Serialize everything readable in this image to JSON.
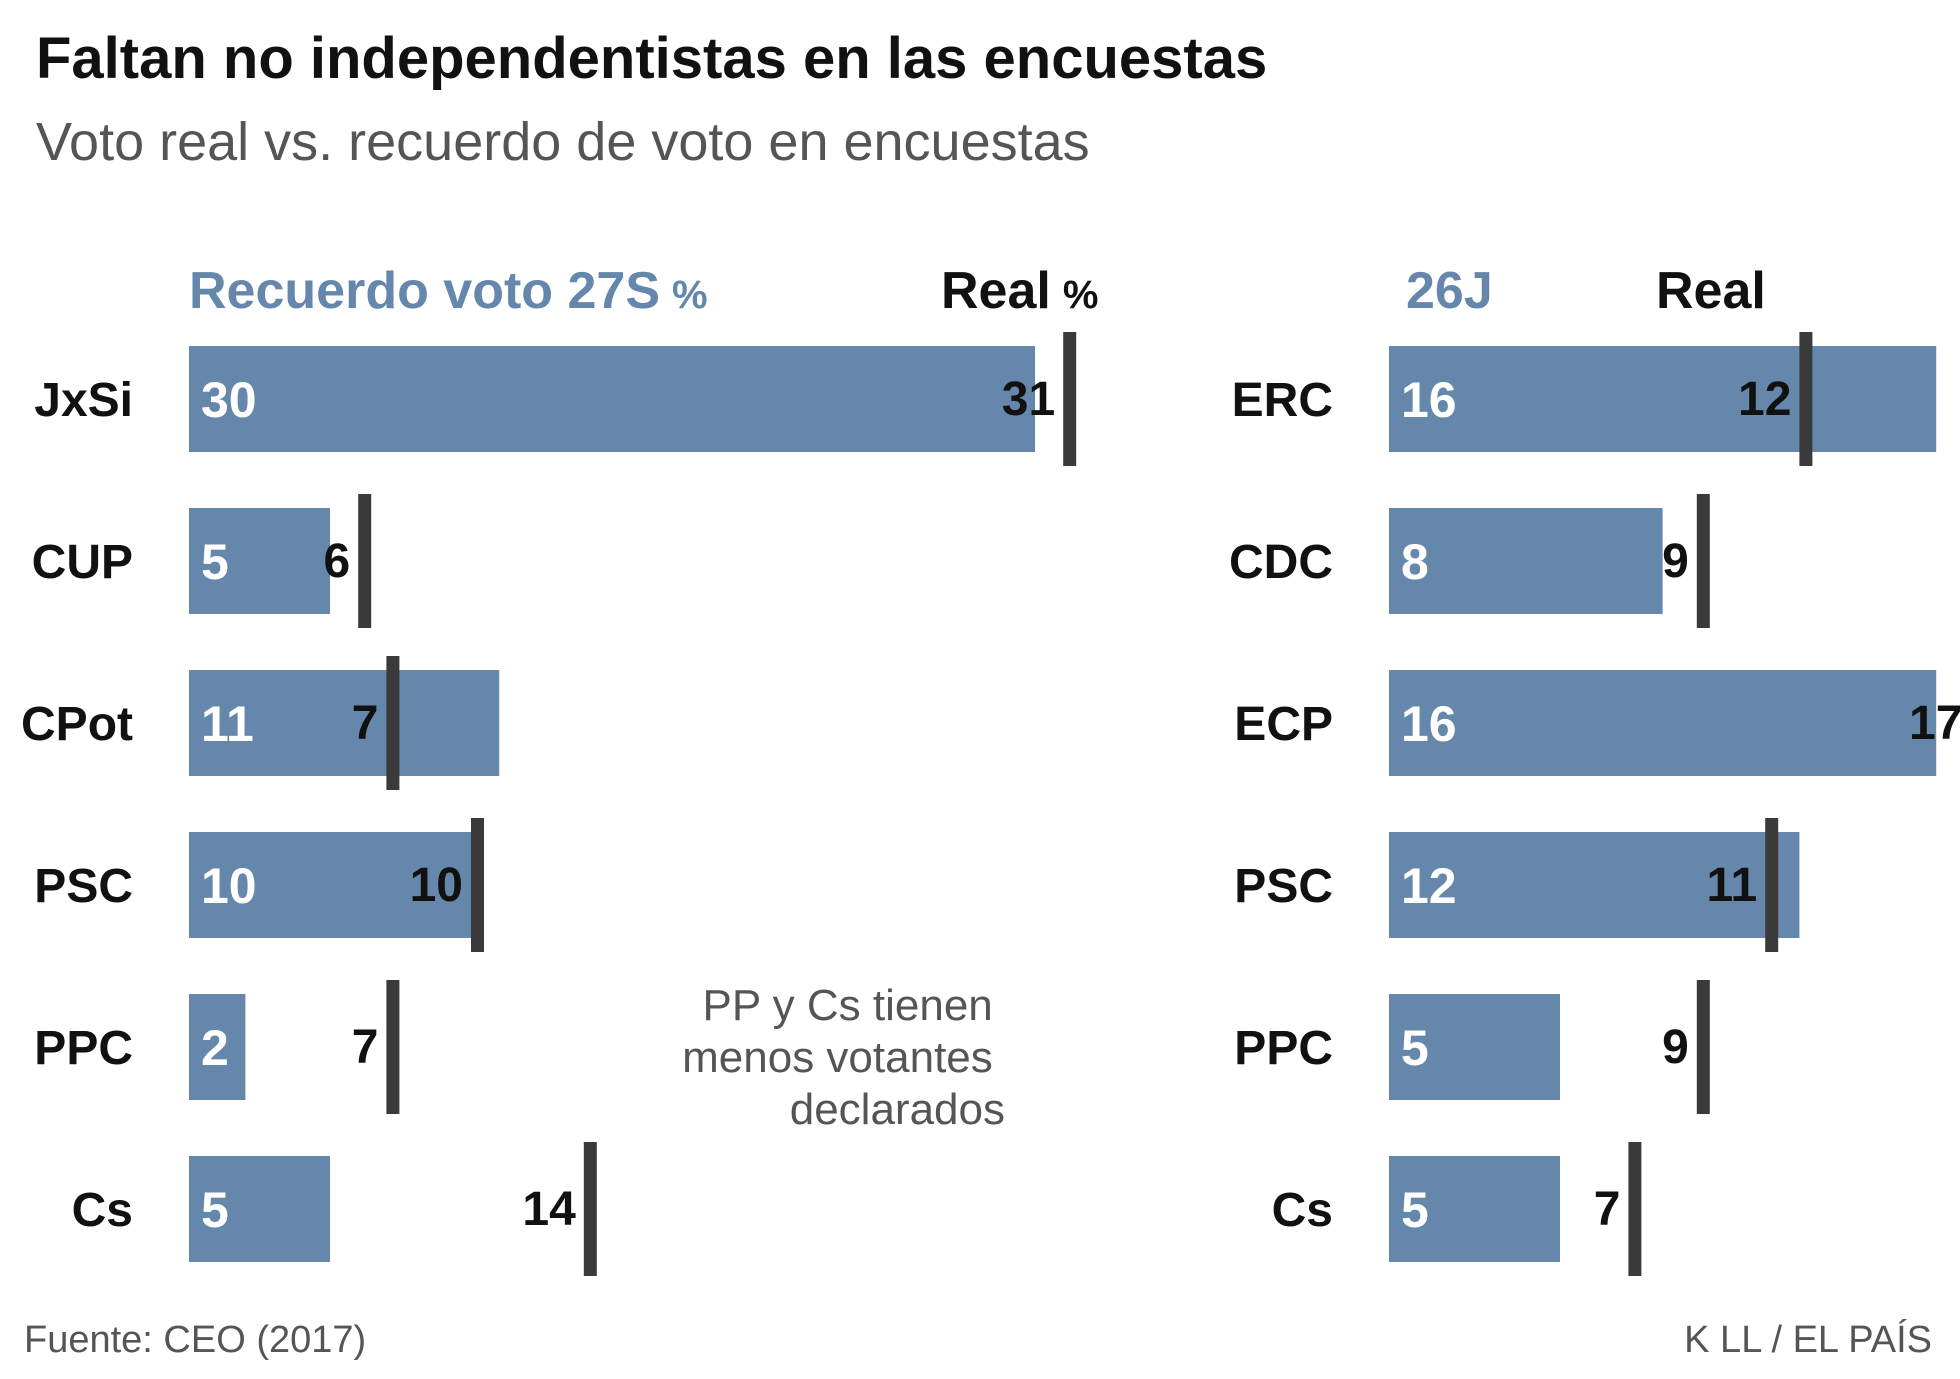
{
  "colors": {
    "bar": "#6487ab",
    "marker": "#3a3a3a",
    "header_blue": "#6487ab",
    "text_dark": "#111111",
    "text_gray": "#555555",
    "bar_label": "#ffffff"
  },
  "chart_data": {
    "type": "bar",
    "title": "Faltan no independentistas en las encuestas",
    "subtitle": "Voto real vs. recuerdo de voto en encuestas",
    "source": "Fuente: CEO (2017)",
    "credit": "K LL / EL PAÍS",
    "annotation": [
      "PP y Cs tienen",
      "menos votantes",
      "declarados"
    ],
    "panels": [
      {
        "header_recall": "Recuerdo voto 27S",
        "header_recall_unit": "%",
        "header_real": "Real",
        "header_real_unit": "%",
        "categories": [
          "JxSi",
          "CUP",
          "CPot",
          "PSC",
          "PPC",
          "Cs"
        ],
        "series": [
          {
            "name": "Recuerdo voto 27S",
            "values": [
              30,
              5,
              11,
              10,
              2,
              5
            ]
          },
          {
            "name": "Real",
            "values": [
              31,
              6,
              7,
              10,
              7,
              14
            ]
          }
        ]
      },
      {
        "header_recall": "26J",
        "header_recall_unit": "",
        "header_real": "Real",
        "header_real_unit": "",
        "categories": [
          "ERC",
          "CDC",
          "ECP",
          "PSC",
          "PPC",
          "Cs"
        ],
        "series": [
          {
            "name": "26J",
            "values": [
              16,
              8,
              16,
              12,
              5,
              5
            ]
          },
          {
            "name": "Real",
            "values": [
              12,
              9,
              17,
              11,
              9,
              7
            ]
          }
        ]
      }
    ]
  }
}
